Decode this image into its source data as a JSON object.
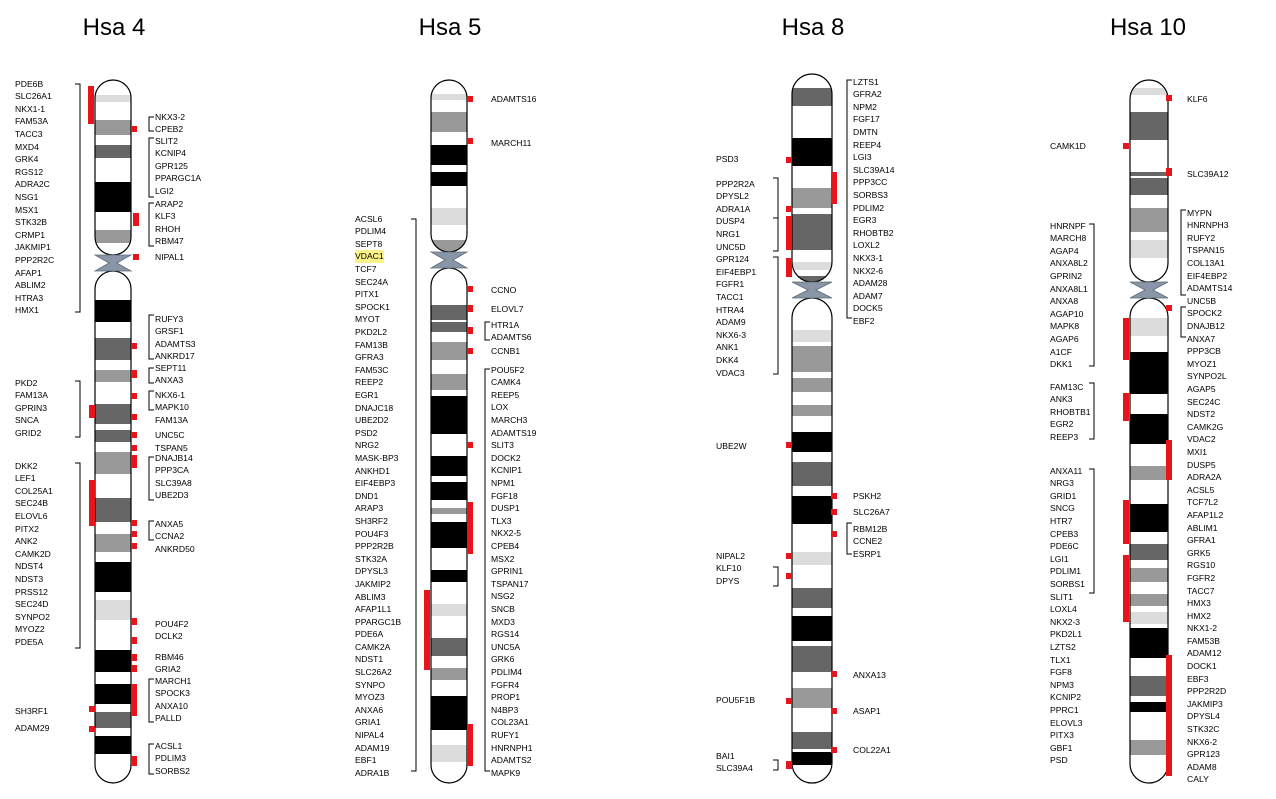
{
  "figure": {
    "highlight_color": "#fdf38a",
    "marker_color": "#e8141b",
    "chromosomes": [
      {
        "title": "Hsa 4",
        "left_genes": [
          "PDE6B",
          "SLC26A1",
          "NKX1-1",
          "FAM53A",
          "TACC3",
          "MXD4",
          "GRK4",
          "RGS12",
          "ADRA2C",
          "NSG1",
          "MSX1",
          "STK32B",
          "CRMP1",
          "JAKMIP1",
          "PPP2R2C",
          "AFAP1",
          "ABLIM2",
          "HTRA3",
          "HMX1",
          "PKD2",
          "FAM13A",
          "GPRIN3",
          "SNCA",
          "GRID2",
          "DKK2",
          "LEF1",
          "COL25A1",
          "SEC24B",
          "ELOVL6",
          "PITX2",
          "ANK2",
          "CAMK2D",
          "NDST4",
          "NDST3",
          "PRSS12",
          "SEC24D",
          "SYNPO2",
          "MYOZ2",
          "PDE5A",
          "SH3RF1",
          "ADAM29"
        ],
        "right_genes": [
          "NKX3-2",
          "CPEB2",
          "SLIT2",
          "KCNIP4",
          "GPR125",
          "PPARGC1A",
          "LGI2",
          "ARAP2",
          "KLF3",
          "RHOH",
          "RBM47",
          "NIPAL1",
          "RUFY3",
          "GRSF1",
          "ADAMTS3",
          "ANKRD17",
          "SEPT11",
          "ANXA3",
          "NKX6-1",
          "MAPK10",
          "FAM13A",
          "UNC5C",
          "TSPAN5",
          "DNAJB14",
          "PPP3CA",
          "SLC39A8",
          "UBE2D3",
          "ANXA5",
          "CCNA2",
          "ANKRD50",
          "POU4F2",
          "DCLK2",
          "RBM46",
          "GRIA2",
          "MARCH1",
          "SPOCK3",
          "ANXA10",
          "PALLD",
          "ACSL1",
          "PDLIM3",
          "SORBS2"
        ]
      },
      {
        "title": "Hsa 5",
        "left_genes": [
          "ACSL6",
          "PDLIM4",
          "SEPT8",
          "VDAC1",
          "TCF7",
          "SEC24A",
          "PITX1",
          "SPOCK1",
          "MYOT",
          "PKD2L2",
          "FAM13B",
          "GFRA3",
          "FAM53C",
          "REEP2",
          "EGR1",
          "DNAJC18",
          "UBE2D2",
          "PSD2",
          "NRG2",
          "MASK-BP3",
          "ANKHD1",
          "EIF4EBP3",
          "DND1",
          "ARAP3",
          "SH3RF2",
          "POU4F3",
          "PPP2R2B",
          "STK32A",
          "DPYSL3",
          "JAKMIP2",
          "ABLIM3",
          "AFAP1L1",
          "PPARGC1B",
          "PDE6A",
          "CAMK2A",
          "NDST1",
          "SLC26A2",
          "SYNPO",
          "MYOZ3",
          "ANXA6",
          "GRIA1",
          "NIPAL4",
          "ADAM19",
          "EBF1",
          "ADRA1B"
        ],
        "highlighted_gene": "VDAC1",
        "right_genes": [
          "ADAMTS16",
          "MARCH11",
          "CCNO",
          "ELOVL7",
          "HTR1A",
          "ADAMTS6",
          "CCNB1",
          "POU5F2",
          "CAMK4",
          "REEP5",
          "LOX",
          "MARCH3",
          "ADAMTS19",
          "SLIT3",
          "DOCK2",
          "KCNIP1",
          "NPM1",
          "FGF18",
          "DUSP1",
          "TLX3",
          "NKX2-5",
          "CPEB4",
          "MSX2",
          "GPRIN1",
          "TSPAN17",
          "NSG2",
          "SNCB",
          "MXD3",
          "RGS14",
          "UNC5A",
          "GRK6",
          "PDLIM4",
          "FGFR4",
          "PROP1",
          "N4BP3",
          "COL23A1",
          "RUFY1",
          "HNRNPH1",
          "ADAMTS2",
          "MAPK9"
        ]
      },
      {
        "title": "Hsa 8",
        "left_genes": [
          "PSD3",
          "PPP2R2A",
          "DPYSL2",
          "ADRA1A",
          "DUSP4",
          "NRG1",
          "UNC5D",
          "GPR124",
          "EIF4EBP1",
          "FGFR1",
          "TACC1",
          "HTRA4",
          "ADAM9",
          "NKX6-3",
          "ANK1",
          "DKK4",
          "VDAC3",
          "UBE2W",
          "NIPAL2",
          "KLF10",
          "DPYS",
          "POU5F1B",
          "BAI1",
          "SLC39A4"
        ],
        "right_genes": [
          "LZTS1",
          "GFRA2",
          "NPM2",
          "FGF17",
          "DMTN",
          "REEP4",
          "LGI3",
          "SLC39A14",
          "PPP3CC",
          "SORBS3",
          "PDLIM2",
          "EGR3",
          "RHOBTB2",
          "LOXL2",
          "NKX3-1",
          "NKX2-6",
          "ADAM28",
          "ADAM7",
          "DOCK5",
          "EBF2",
          "PSKH2",
          "SLC26A7",
          "RBM12B",
          "CCNE2",
          "ESRP1",
          "ANXA13",
          "ASAP1",
          "COL22A1"
        ]
      },
      {
        "title": "Hsa 10",
        "left_genes": [
          "CAMK1D",
          "HNRNPF",
          "MARCH8",
          "AGAP4",
          "ANXA8L2",
          "GPRIN2",
          "ANXA8L1",
          "ANXA8",
          "AGAP10",
          "MAPK8",
          "AGAP6",
          "A1CF",
          "DKK1",
          "FAM13C",
          "ANK3",
          "RHOBTB1",
          "EGR2",
          "REEP3",
          "ANXA11",
          "NRG3",
          "GRID1",
          "SNCG",
          "HTR7",
          "CPEB3",
          "PDE6C",
          "LGI1",
          "PDLIM1",
          "SORBS1",
          "SLIT1",
          "LOXL4",
          "NKX2-3",
          "PKD2L1",
          "LZTS2",
          "TLX1",
          "FGF8",
          "NPM3",
          "KCNIP2",
          "PPRC1",
          "ELOVL3",
          "PITX3",
          "GBF1",
          "PSD"
        ],
        "right_genes": [
          "KLF6",
          "SLC39A12",
          "MYPN",
          "HNRNPH3",
          "RUFY2",
          "TSPAN15",
          "COL13A1",
          "EIF4EBP2",
          "ADAMTS14",
          "UNC5B",
          "SPOCK2",
          "DNAJB12",
          "ANXA7",
          "PPP3CB",
          "MYOZ1",
          "SYNPO2L",
          "AGAP5",
          "SEC24C",
          "NDST2",
          "CAMK2G",
          "VDAC2",
          "MXI1",
          "DUSP5",
          "ADRA2A",
          "ACSL5",
          "TCF7L2",
          "AFAP1L2",
          "ABLIM1",
          "GFRA1",
          "GRK5",
          "RGS10",
          "FGFR2",
          "TACC7",
          "HMX3",
          "HMX2",
          "NKX1-2",
          "FAM53B",
          "ADAM12",
          "DOCK1",
          "EBF3",
          "PPP2R2D",
          "JAKMIP3",
          "DPYSL4",
          "STK32C",
          "NKX6-2",
          "GPR123",
          "ADAM8",
          "CALY"
        ]
      }
    ]
  }
}
